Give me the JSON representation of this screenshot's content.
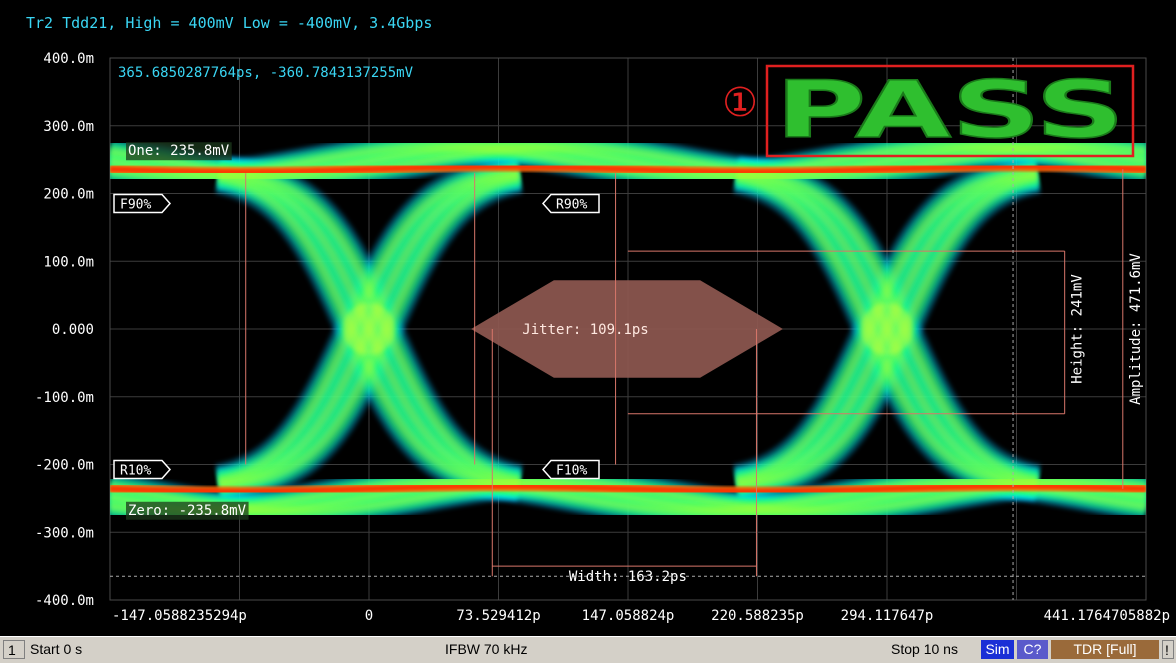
{
  "header": {
    "trace_title": "Tr2 Tdd21, High = 400mV Low = -400mV, 3.4Gbps"
  },
  "readout": {
    "marker_coords": "365.6850287764ps, -360.7843137255mV"
  },
  "result": {
    "index_marker": "①",
    "verdict": "PASS",
    "verdict_color": "#2fbf2f",
    "frame_color": "#e02020"
  },
  "levels": {
    "one": "One: 235.8mV",
    "zero": "Zero: -235.8mV"
  },
  "measurements": {
    "jitter": "Jitter: 109.1ps",
    "width": "Width: 163.2ps",
    "height": "Height: 241mV",
    "amplitude": "Amplitude: 471.6mV",
    "markers": {
      "f90": "F90%",
      "r90": "R90%",
      "r10": "R10%",
      "f10": "F10%"
    }
  },
  "chart_data": {
    "type": "eye-diagram",
    "xlim_ps": [
      -147.0588235294,
      441.1764705882
    ],
    "ylim_mV": [
      -400,
      400
    ],
    "grid": true,
    "x_ticks": [
      {
        "value": -147.0588235294,
        "label": "-147.0588235294p"
      },
      {
        "value": 0,
        "label": "0"
      },
      {
        "value": 73.529412,
        "label": "73.529412p"
      },
      {
        "value": 147.058824,
        "label": "147.058824p"
      },
      {
        "value": 220.588235,
        "label": "220.588235p"
      },
      {
        "value": 294.117647,
        "label": "294.117647p"
      },
      {
        "value": 441.1764705882,
        "label": "441.1764705882p"
      }
    ],
    "y_ticks": [
      {
        "value": 400,
        "label": "400.0m"
      },
      {
        "value": 300,
        "label": "300.0m"
      },
      {
        "value": 200,
        "label": "200.0m"
      },
      {
        "value": 100,
        "label": "100.0m"
      },
      {
        "value": 0,
        "label": "0.000"
      },
      {
        "value": -100,
        "label": "-100.0m"
      },
      {
        "value": -200,
        "label": "-200.0m"
      },
      {
        "value": -300,
        "label": "-300.0m"
      },
      {
        "value": -400,
        "label": "-400.0m"
      }
    ],
    "one_level_mV": 235.8,
    "zero_level_mV": -235.8,
    "crossings_ps": [
      0,
      294.117647
    ],
    "rise_fall_ps": 150,
    "jitter_ps": 109.1,
    "eye_width_ps": 163.2,
    "eye_height_mV": 241,
    "amplitude_mV": 471.6,
    "marker_ps": 365.6850287764,
    "marker_mV": -360.7843137255,
    "mask_polygon": [
      {
        "t": 58,
        "v": 0
      },
      {
        "t": 105,
        "v": 72
      },
      {
        "t": 188,
        "v": 72
      },
      {
        "t": 235,
        "v": 0
      },
      {
        "t": 188,
        "v": -72
      },
      {
        "t": 105,
        "v": -72
      }
    ],
    "mask_color": "#8e5850",
    "colors": {
      "grid": "#3c3c3c",
      "axis_text": "#36d6ff",
      "title_text": "#3ad6f4",
      "eye_core": "#00ff7a",
      "eye_hot": "#ff2a00"
    }
  },
  "statusbar": {
    "channel": "1",
    "start": "Start 0 s",
    "ifbw": "IFBW 70 kHz",
    "stop": "Stop 10 ns",
    "sim": "Sim",
    "c": "C?",
    "tdr": "TDR [Full]",
    "excl": "!"
  }
}
